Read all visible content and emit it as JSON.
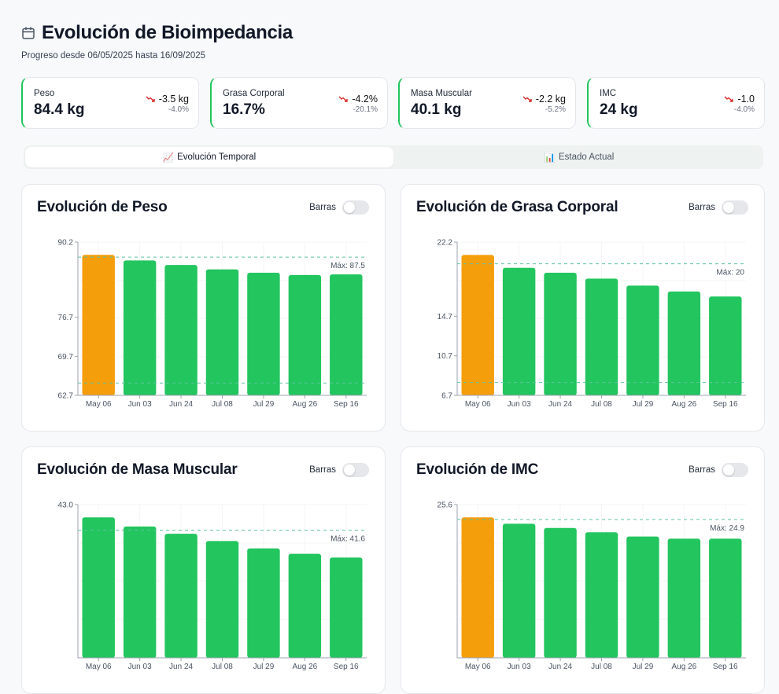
{
  "header": {
    "title": "Evolución de Bioimpedancia",
    "subtitle": "Progreso desde 06/05/2025 hasta 16/09/2025",
    "icon": "calendar-icon"
  },
  "stats": [
    {
      "label": "Peso",
      "value": "84.4 kg",
      "change": "-3.5 kg",
      "percent": "-4.0%",
      "trend": "down"
    },
    {
      "label": "Grasa Corporal",
      "value": "16.7%",
      "change": "-4.2%",
      "percent": "-20.1%",
      "trend": "down"
    },
    {
      "label": "Masa Muscular",
      "value": "40.1 kg",
      "change": "-2.2 kg",
      "percent": "-5.2%",
      "trend": "down"
    },
    {
      "label": "IMC",
      "value": "24 kg",
      "change": "-1.0",
      "percent": "-4.0%",
      "trend": "down"
    }
  ],
  "tabs": [
    {
      "label": "Evolución Temporal",
      "icon": "📈",
      "active": true
    },
    {
      "label": "Estado Actual",
      "icon": "📊",
      "active": false
    }
  ],
  "colors": {
    "bar": "#22c55e",
    "highlight": "#f59e0b",
    "reference": "#5ec2a0",
    "trend_down": "#dc2626"
  },
  "toggle_label": "Barras",
  "chart_data": [
    {
      "type": "bar",
      "title": "Evolución de Peso",
      "categories": [
        "May 06",
        "Jun 03",
        "Jun 24",
        "Jul 08",
        "Jul 29",
        "Aug 26",
        "Sep 16"
      ],
      "values": [
        87.9,
        86.9,
        86.1,
        85.3,
        84.7,
        84.3,
        84.4
      ],
      "highlight": [
        0
      ],
      "ylim": [
        62.7,
        90.2
      ],
      "yticks": [
        "90.2",
        "76.7",
        "69.7",
        "62.7"
      ],
      "max_line": 87.5,
      "max_label": "Máx: 87.5",
      "min_line": 64.9,
      "grid": true
    },
    {
      "type": "bar",
      "title": "Evolución de Grasa Corporal",
      "categories": [
        "May 06",
        "Jun 03",
        "Jun 24",
        "Jul 08",
        "Jul 29",
        "Aug 26",
        "Sep 16"
      ],
      "values": [
        20.9,
        19.6,
        19.1,
        18.5,
        17.8,
        17.2,
        16.7
      ],
      "highlight": [
        0
      ],
      "ylim": [
        6.7,
        22.2
      ],
      "yticks": [
        "22.2",
        "14.7",
        "10.7",
        "6.7"
      ],
      "max_line": 20,
      "max_label": "Máx: 20",
      "min_line": 8.0,
      "grid": true
    },
    {
      "type": "bar",
      "title": "Evolución de Masa Muscular",
      "categories": [
        "May 06",
        "Jun 03",
        "Jun 24",
        "Jul 08",
        "Jul 29",
        "Aug 26",
        "Sep 16"
      ],
      "values": [
        42.3,
        41.8,
        41.4,
        41.0,
        40.6,
        40.3,
        40.1
      ],
      "highlight": [],
      "ylim": [
        34.6,
        43.0
      ],
      "yticks": [
        "43.0"
      ],
      "max_line": 41.6,
      "max_label": "Máx: 41.6",
      "grid": true
    },
    {
      "type": "bar",
      "title": "Evolución de IMC",
      "categories": [
        "May 06",
        "Jun 03",
        "Jun 24",
        "Jul 08",
        "Jul 29",
        "Aug 26",
        "Sep 16"
      ],
      "values": [
        25.0,
        24.7,
        24.5,
        24.3,
        24.1,
        24.0,
        24.0
      ],
      "highlight": [
        0
      ],
      "ylim": [
        18.4,
        25.6
      ],
      "yticks": [
        "25.6"
      ],
      "max_line": 24.9,
      "max_label": "Máx: 24.9",
      "grid": true
    }
  ]
}
